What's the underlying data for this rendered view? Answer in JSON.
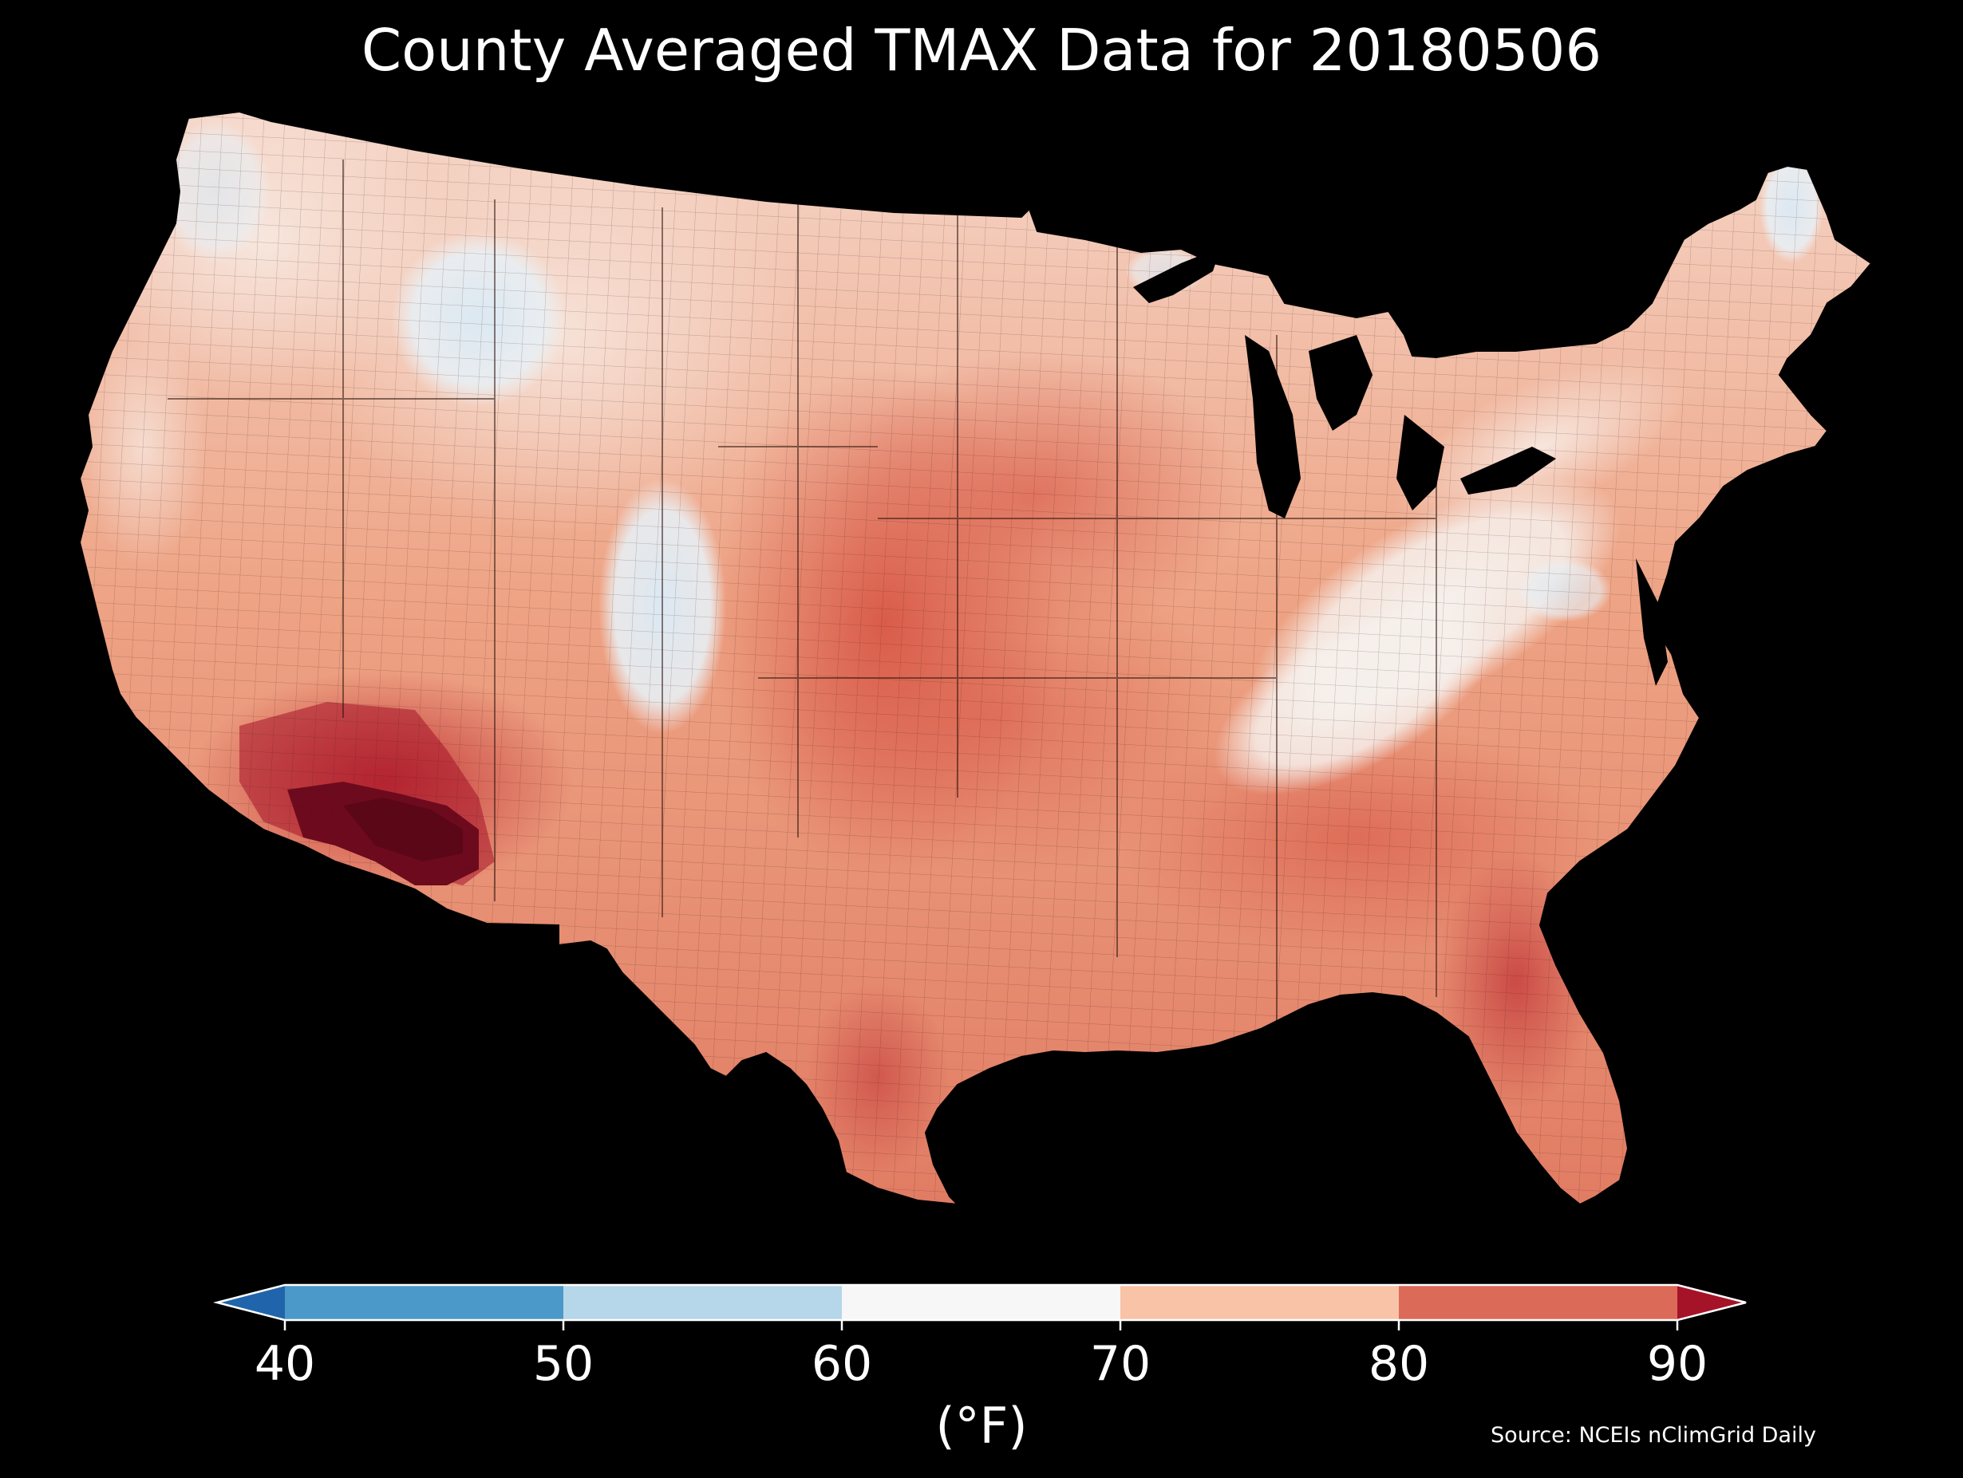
{
  "title": "County Averaged TMAX Data for 20180506",
  "source": "Source: NCEIs nClimGrid Daily",
  "colorbar": {
    "unit": "(°F)",
    "ticks": [
      "40",
      "50",
      "60",
      "70",
      "80",
      "90"
    ],
    "bins": [
      {
        "from": 40,
        "to": 50,
        "color": "#4b99c8"
      },
      {
        "from": 50,
        "to": 60,
        "color": "#b6d7e9"
      },
      {
        "from": 60,
        "to": 70,
        "color": "#f7f7f7"
      },
      {
        "from": 70,
        "to": 80,
        "color": "#f9c3a7"
      },
      {
        "from": 80,
        "to": 90,
        "color": "#dc6a58"
      }
    ],
    "under_color": "#2065ab",
    "over_color": "#a51328",
    "extend": "both"
  },
  "map_regions": [
    {
      "name": "pacific-northwest",
      "temp_class": "60-70",
      "color": "#f6e4dc"
    },
    {
      "name": "northern-rockies",
      "temp_class": "50-60",
      "color": "#e3eef6"
    },
    {
      "name": "colorado-rockies",
      "temp_class": "50-60",
      "color": "#dde9f3"
    },
    {
      "name": "great-basin",
      "temp_class": "70-80",
      "color": "#f4b89a"
    },
    {
      "name": "desert-southwest",
      "temp_class": "80-90",
      "color": "#c53a3d"
    },
    {
      "name": "lower-colorado-river",
      "temp_class": ">90",
      "color": "#6e0a1d"
    },
    {
      "name": "great-plains",
      "temp_class": "80-90",
      "color": "#e0735b"
    },
    {
      "name": "appalachians",
      "temp_class": "60-70",
      "color": "#f5eeea"
    },
    {
      "name": "northern-maine",
      "temp_class": "60-70",
      "color": "#e6eff5"
    },
    {
      "name": "texas-gulf",
      "temp_class": "80-90",
      "color": "#d8604e"
    },
    {
      "name": "south-florida",
      "temp_class": "80-90",
      "color": "#c9464a"
    }
  ]
}
